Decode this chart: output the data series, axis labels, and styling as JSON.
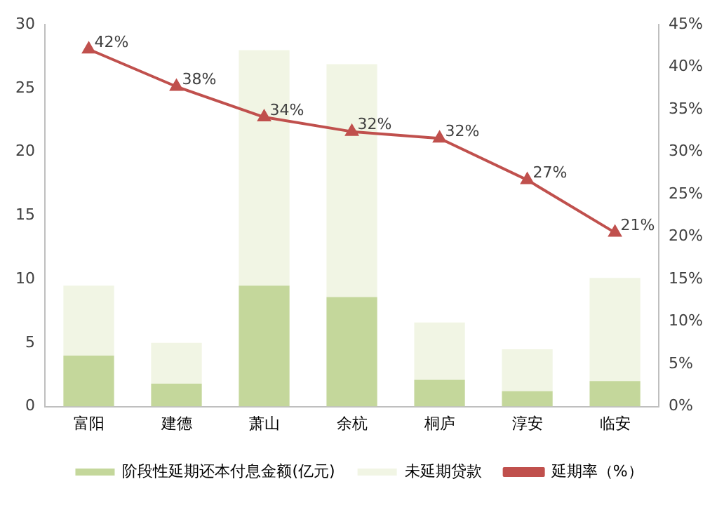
{
  "chart_data": {
    "type": "bar",
    "stacked": true,
    "categories": [
      "富阳",
      "建德",
      "萧山",
      "余杭",
      "桐庐",
      "淳安",
      "临安"
    ],
    "series": [
      {
        "name": "阶段性延期还本付息金额(亿元)",
        "color": "#c4d79b",
        "values": [
          4.0,
          1.8,
          9.5,
          8.6,
          2.1,
          1.2,
          2.0
        ]
      },
      {
        "name": "未延期贷款",
        "color": "#f1f5e4",
        "values": [
          5.5,
          3.2,
          18.5,
          18.3,
          4.5,
          3.3,
          8.1
        ]
      },
      {
        "name": "延期率（%）",
        "type": "line",
        "axis": "y2",
        "color": "#c0504d",
        "marker": "triangle",
        "values": [
          42.1,
          37.7,
          34.1,
          32.4,
          31.6,
          26.7,
          20.5
        ],
        "value_labels": [
          "42%",
          "38%",
          "34%",
          "32%",
          "32%",
          "27%",
          "21%"
        ]
      }
    ],
    "ylim": [
      0,
      30
    ],
    "yticks": [
      0,
      5,
      10,
      15,
      20,
      25,
      30
    ],
    "y2lim": [
      0,
      45
    ],
    "y2ticks": [
      {
        "value": 0,
        "label": "0%"
      },
      {
        "value": 5,
        "label": "5%"
      },
      {
        "value": 10,
        "label": "10%"
      },
      {
        "value": 15,
        "label": "15%"
      },
      {
        "value": 20,
        "label": "20%"
      },
      {
        "value": 25,
        "label": "25%"
      },
      {
        "value": 30,
        "label": "30%"
      },
      {
        "value": 35,
        "label": "35%"
      },
      {
        "value": 40,
        "label": "40%"
      },
      {
        "value": 45,
        "label": "45%"
      }
    ],
    "grid": false,
    "legend": "bottom"
  }
}
